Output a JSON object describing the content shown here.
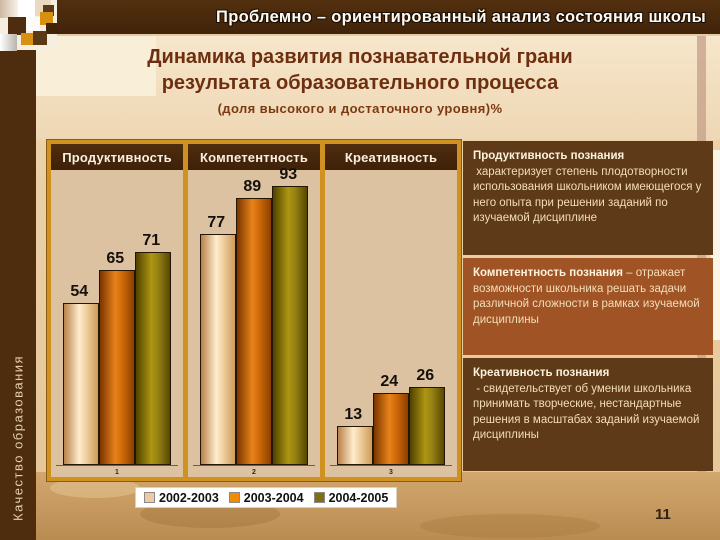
{
  "top_banner": {
    "title": "Проблемно – ориентированный анализ состояния школы"
  },
  "slide_title": {
    "line1": "Динамика развития познавательной грани",
    "line2": "результата образовательного процесса",
    "subtitle": "(доля высокого и достаточного уровня)%"
  },
  "left_sidebar": {
    "vertical_label": "Качество образования"
  },
  "chart_data": {
    "type": "bar",
    "title": "Динамика развития познавательной грани результата образовательного процесса (доля высокого и достаточного уровня)%",
    "ylim": [
      0,
      100
    ],
    "legend_position": "bottom",
    "grid": false,
    "groups": [
      {
        "label": "Продуктивность",
        "axis_label": "1",
        "values": [
          54,
          65,
          71
        ]
      },
      {
        "label": "Компетентность",
        "axis_label": "2",
        "values": [
          77,
          89,
          93
        ]
      },
      {
        "label": "Креативность",
        "axis_label": "3",
        "values": [
          13,
          24,
          26
        ]
      }
    ],
    "series": [
      {
        "name": "2002-2003",
        "color": "#eccaa4"
      },
      {
        "name": "2003-2004",
        "color": "#ef8c00"
      },
      {
        "name": "2004-2005",
        "color": "#7d7012"
      }
    ]
  },
  "definitions": [
    {
      "term": "Продуктивность познания",
      "sep": " ",
      "text": "характеризует степень плодотворности использования школьником имеющегося у него опыта при решении заданий по изучаемой дисциплине"
    },
    {
      "term": "Компетентность познания",
      "sep": " – ",
      "text": "отражает возможности школьника решать задачи различной сложности в рамках изучаемой дисциплины"
    },
    {
      "term": "Креативность познания",
      "sep": " - ",
      "text": "свидетельствует об умении школьника принимать творческие, нестандартные решения в масштабах заданий изучаемой дисциплины"
    }
  ],
  "page": {
    "number": "11"
  }
}
